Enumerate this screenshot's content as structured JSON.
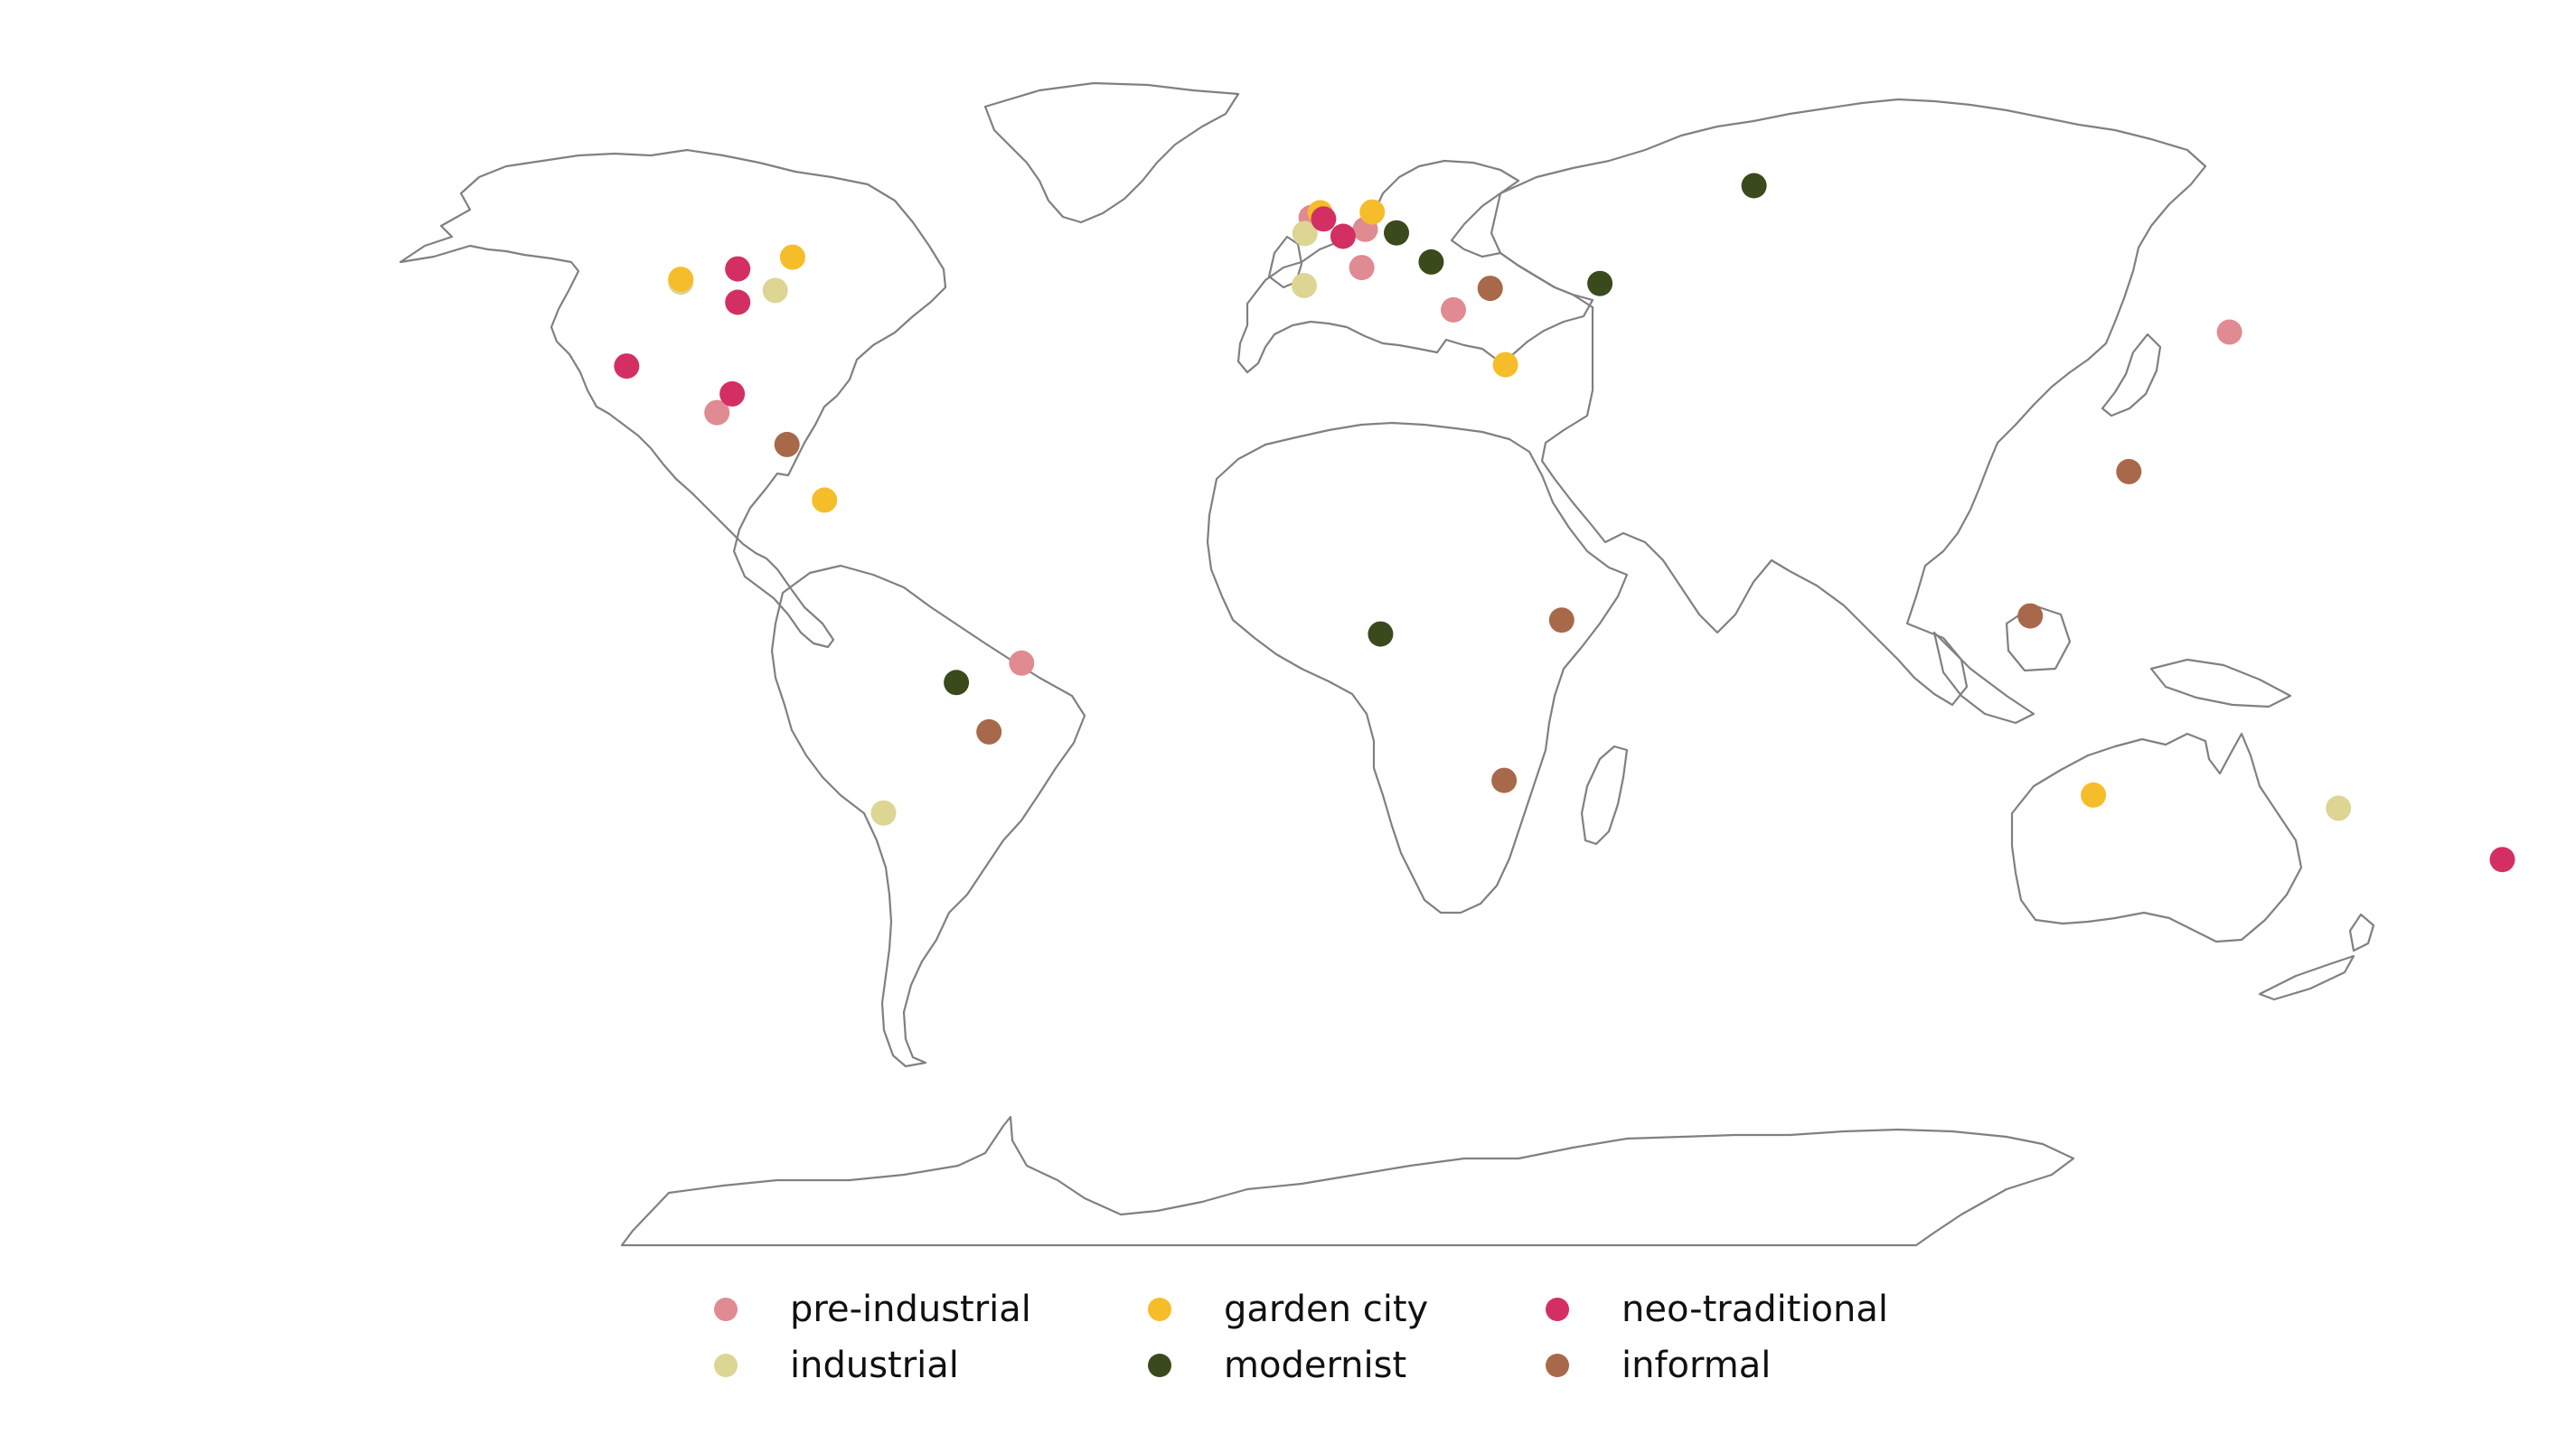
{
  "map": {
    "projection": "equirectangular",
    "basemap": "world coastlines (outline only)",
    "categories": [
      {
        "key": "pre-industrial",
        "label": "pre-industrial",
        "color": "#e08a92"
      },
      {
        "key": "industrial",
        "label": "industrial",
        "color": "#dcd594"
      },
      {
        "key": "garden-city",
        "label": "garden city",
        "color": "#f6bd2a"
      },
      {
        "key": "modernist",
        "label": "modernist",
        "color": "#3b4a1c"
      },
      {
        "key": "neo-traditional",
        "label": "neo-traditional",
        "color": "#d42f63"
      },
      {
        "key": "informal",
        "label": "informal",
        "color": "#a8694a"
      }
    ],
    "points": [
      {
        "category": "pre-industrial",
        "lat": 51.2,
        "lon": 3.2
      },
      {
        "category": "pre-industrial",
        "lat": 49.5,
        "lon": 11.0
      },
      {
        "category": "pre-industrial",
        "lat": 44.0,
        "lon": 10.5
      },
      {
        "category": "pre-industrial",
        "lat": 37.9,
        "lon": 23.7
      },
      {
        "category": "pre-industrial",
        "lat": 34.7,
        "lon": 135.5
      },
      {
        "category": "pre-industrial",
        "lat": 23.1,
        "lon": -82.4
      },
      {
        "category": "pre-industrial",
        "lat": -13.0,
        "lon": -38.5
      },
      {
        "category": "industrial",
        "lat": 41.9,
        "lon": -87.6
      },
      {
        "category": "industrial",
        "lat": 40.7,
        "lon": -74.0
      },
      {
        "category": "industrial",
        "lat": 48.9,
        "lon": 2.3
      },
      {
        "category": "industrial",
        "lat": 41.4,
        "lon": 2.2
      },
      {
        "category": "industrial",
        "lat": -34.6,
        "lon": -58.4
      },
      {
        "category": "industrial",
        "lat": -33.9,
        "lon": 151.2
      },
      {
        "category": "garden-city",
        "lat": 42.3,
        "lon": -87.6
      },
      {
        "category": "garden-city",
        "lat": 45.5,
        "lon": -71.5
      },
      {
        "category": "garden-city",
        "lat": 51.9,
        "lon": 4.5
      },
      {
        "category": "garden-city",
        "lat": 52.0,
        "lon": 12.0
      },
      {
        "category": "garden-city",
        "lat": 30.0,
        "lon": 31.2
      },
      {
        "category": "garden-city",
        "lat": 10.5,
        "lon": -66.9
      },
      {
        "category": "garden-city",
        "lat": -32.0,
        "lon": 115.9
      },
      {
        "category": "modernist",
        "lat": 49.0,
        "lon": 15.5
      },
      {
        "category": "modernist",
        "lat": 44.8,
        "lon": 20.5
      },
      {
        "category": "modernist",
        "lat": 41.7,
        "lon": 44.8
      },
      {
        "category": "modernist",
        "lat": 55.8,
        "lon": 67.0
      },
      {
        "category": "modernist",
        "lat": -8.8,
        "lon": 13.2
      },
      {
        "category": "modernist",
        "lat": -15.8,
        "lon": -47.9
      },
      {
        "category": "neo-traditional",
        "lat": 51.0,
        "lon": 5.0
      },
      {
        "category": "neo-traditional",
        "lat": 48.5,
        "lon": 7.8
      },
      {
        "category": "neo-traditional",
        "lat": 43.8,
        "lon": -79.4
      },
      {
        "category": "neo-traditional",
        "lat": 39.0,
        "lon": -79.4
      },
      {
        "category": "neo-traditional",
        "lat": 29.8,
        "lon": -95.4
      },
      {
        "category": "neo-traditional",
        "lat": 25.8,
        "lon": -80.2
      },
      {
        "category": "neo-traditional",
        "lat": -41.3,
        "lon": 174.8
      },
      {
        "category": "informal",
        "lat": 41.0,
        "lon": 29.0
      },
      {
        "category": "informal",
        "lat": 18.5,
        "lon": -72.3
      },
      {
        "category": "informal",
        "lat": 14.6,
        "lon": 121.0
      },
      {
        "category": "informal",
        "lat": -6.2,
        "lon": 106.8
      },
      {
        "category": "informal",
        "lat": -6.8,
        "lon": 39.3
      },
      {
        "category": "informal",
        "lat": -22.9,
        "lon": -43.2
      },
      {
        "category": "informal",
        "lat": -29.9,
        "lon": 31.0
      }
    ]
  }
}
